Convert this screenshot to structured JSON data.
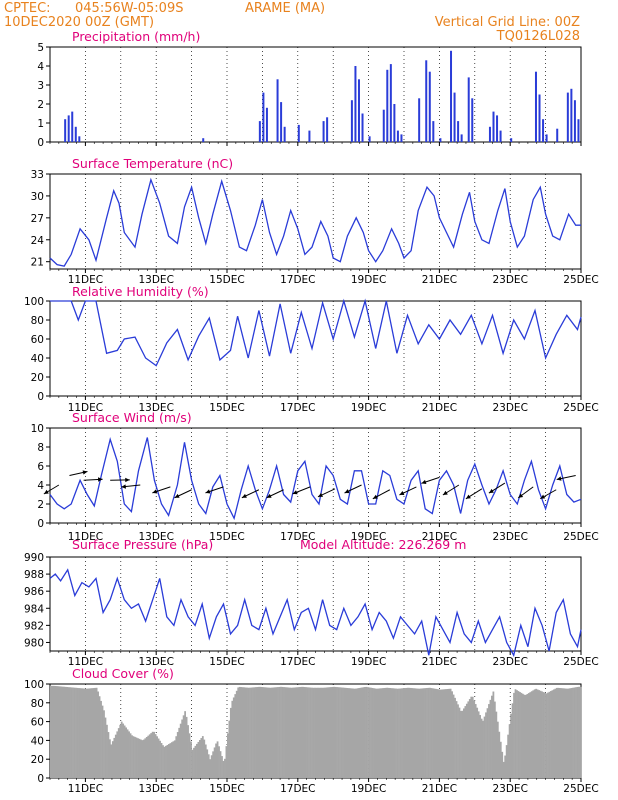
{
  "header": {
    "source": "CPTEC:",
    "coords": "045:56W-05:09S",
    "station": "ARAME (MA)",
    "datetime": "10DEC2020 00Z (GMT)",
    "grid_note": "Vertical Grid Line: 00Z",
    "model_code": "TQ0126L028",
    "model_altitude": "Model Altitude: 226.269 m"
  },
  "colors": {
    "header": "#e8821e",
    "title": "#e0007a",
    "line": "#2a3cd8",
    "bar": "#2a3cd8",
    "cloud": "#a6a6a6"
  },
  "x_ticks": [
    "11DEC",
    "13DEC",
    "15DEC",
    "17DEC",
    "19DEC",
    "21DEC",
    "23DEC",
    "25DEC"
  ],
  "chart_data": [
    {
      "type": "bar",
      "title": "Precipitation (mm/h)",
      "ylim": [
        0,
        5
      ],
      "yticks": [
        "0",
        "1",
        "2",
        "3",
        "4",
        "5"
      ],
      "xlim_days": [
        10,
        25
      ],
      "x": [
        10.4,
        10.5,
        10.6,
        10.7,
        10.8,
        14.3,
        15.9,
        16.0,
        16.1,
        16.4,
        16.5,
        16.6,
        17.0,
        17.3,
        17.7,
        17.8,
        18.5,
        18.6,
        18.7,
        18.8,
        19.0,
        19.4,
        19.5,
        19.6,
        19.7,
        19.8,
        19.9,
        20.4,
        20.6,
        20.7,
        20.8,
        21.0,
        21.3,
        21.4,
        21.5,
        21.6,
        21.8,
        21.9,
        22.4,
        22.5,
        22.6,
        22.7,
        23.0,
        23.7,
        23.8,
        23.9,
        24.0,
        24.3,
        24.6,
        24.7,
        24.8,
        24.9
      ],
      "values": [
        1.2,
        1.4,
        1.6,
        0.8,
        0.3,
        0.2,
        1.1,
        2.6,
        1.8,
        3.3,
        2.1,
        0.8,
        0.9,
        0.6,
        1.1,
        1.3,
        2.2,
        4.0,
        3.3,
        1.5,
        0.3,
        1.7,
        3.8,
        4.1,
        2.0,
        0.6,
        0.4,
        2.3,
        4.3,
        3.7,
        1.1,
        0.2,
        4.8,
        2.6,
        1.1,
        0.4,
        3.4,
        2.3,
        0.8,
        1.6,
        1.4,
        0.6,
        0.2,
        3.7,
        2.5,
        1.2,
        0.4,
        0.7,
        2.6,
        2.8,
        2.2,
        1.2
      ]
    },
    {
      "type": "line",
      "title": "Surface Temperature (nC)",
      "ylim": [
        20,
        33
      ],
      "yticks": [
        "21",
        "24",
        "27",
        "30",
        "33"
      ],
      "ytick_values": [
        21,
        24,
        27,
        30,
        33
      ],
      "xlim_days": [
        10,
        25
      ],
      "x": [
        10.0,
        10.2,
        10.4,
        10.6,
        10.85,
        11.1,
        11.3,
        11.6,
        11.8,
        11.95,
        12.1,
        12.4,
        12.6,
        12.85,
        13.1,
        13.35,
        13.6,
        13.8,
        14.0,
        14.2,
        14.4,
        14.6,
        14.85,
        15.1,
        15.35,
        15.55,
        15.8,
        16.0,
        16.2,
        16.4,
        16.6,
        16.8,
        17.0,
        17.2,
        17.4,
        17.65,
        17.85,
        18.0,
        18.2,
        18.4,
        18.65,
        18.85,
        19.0,
        19.2,
        19.4,
        19.65,
        19.85,
        20.0,
        20.2,
        20.4,
        20.65,
        20.85,
        21.0,
        21.2,
        21.4,
        21.65,
        21.85,
        22.0,
        22.2,
        22.4,
        22.65,
        22.85,
        23.0,
        23.2,
        23.4,
        23.65,
        23.85,
        24.0,
        24.2,
        24.4,
        24.65,
        24.85,
        25.0
      ],
      "values": [
        21.5,
        20.6,
        20.4,
        22.0,
        25.5,
        24.0,
        21.2,
        27.0,
        30.7,
        29.0,
        25.0,
        23.0,
        27.5,
        32.2,
        29.0,
        24.5,
        23.5,
        28.5,
        31.2,
        27.0,
        23.5,
        27.5,
        32.0,
        28.0,
        23.0,
        22.5,
        26.0,
        29.5,
        25.0,
        22.0,
        24.5,
        28.0,
        25.5,
        22.0,
        23.0,
        26.5,
        24.5,
        21.5,
        21.0,
        24.5,
        27.0,
        25.0,
        22.5,
        21.0,
        22.5,
        25.5,
        23.5,
        21.5,
        22.5,
        28.0,
        31.2,
        30.0,
        27.0,
        25.0,
        23.0,
        27.5,
        30.5,
        26.5,
        24.0,
        23.5,
        28.0,
        31.0,
        26.5,
        23.0,
        24.5,
        29.5,
        31.2,
        27.5,
        24.5,
        24.0,
        27.5,
        26.0,
        26.0
      ]
    },
    {
      "type": "line",
      "title": "Relative Humidity (%)",
      "ylim": [
        0,
        100
      ],
      "yticks": [
        "0",
        "20",
        "40",
        "60",
        "80",
        "100"
      ],
      "ytick_values": [
        0,
        20,
        40,
        60,
        80,
        100
      ],
      "xlim_days": [
        10,
        25
      ],
      "x": [
        10.0,
        10.3,
        10.6,
        10.8,
        11.0,
        11.3,
        11.6,
        11.9,
        12.1,
        12.4,
        12.7,
        13.0,
        13.3,
        13.6,
        13.9,
        14.2,
        14.5,
        14.8,
        15.1,
        15.3,
        15.6,
        15.9,
        16.2,
        16.5,
        16.8,
        17.1,
        17.4,
        17.7,
        18.0,
        18.3,
        18.6,
        18.9,
        19.2,
        19.5,
        19.8,
        20.1,
        20.4,
        20.7,
        21.0,
        21.3,
        21.6,
        21.9,
        22.2,
        22.5,
        22.8,
        23.1,
        23.4,
        23.7,
        24.0,
        24.3,
        24.6,
        24.9,
        25.0
      ],
      "values": [
        100,
        100,
        100,
        80,
        100,
        100,
        45,
        48,
        60,
        62,
        40,
        32,
        56,
        70,
        38,
        63,
        82,
        38,
        48,
        84,
        40,
        90,
        42,
        97,
        45,
        88,
        50,
        98,
        60,
        100,
        62,
        100,
        50,
        100,
        45,
        85,
        55,
        75,
        60,
        80,
        65,
        85,
        55,
        85,
        45,
        80,
        60,
        90,
        40,
        65,
        85,
        70,
        83
      ]
    },
    {
      "type": "line",
      "title": "Surface Wind (m/s)",
      "ylim": [
        0,
        10
      ],
      "yticks": [
        "0",
        "2",
        "4",
        "6",
        "8",
        "10"
      ],
      "ytick_values": [
        0,
        2,
        4,
        6,
        8,
        10
      ],
      "xlim_days": [
        10,
        25
      ],
      "x": [
        10.0,
        10.2,
        10.4,
        10.6,
        10.85,
        11.05,
        11.25,
        11.45,
        11.7,
        11.9,
        12.1,
        12.3,
        12.5,
        12.75,
        12.95,
        13.15,
        13.35,
        13.6,
        13.8,
        14.0,
        14.2,
        14.4,
        14.6,
        14.8,
        15.0,
        15.2,
        15.4,
        15.6,
        15.8,
        16.0,
        16.2,
        16.4,
        16.6,
        16.8,
        17.0,
        17.2,
        17.4,
        17.6,
        17.8,
        18.0,
        18.2,
        18.4,
        18.6,
        18.8,
        19.0,
        19.2,
        19.4,
        19.6,
        19.8,
        20.0,
        20.2,
        20.4,
        20.6,
        20.8,
        21.0,
        21.2,
        21.4,
        21.6,
        21.8,
        22.0,
        22.2,
        22.4,
        22.6,
        22.8,
        23.0,
        23.2,
        23.4,
        23.6,
        23.8,
        24.0,
        24.2,
        24.4,
        24.6,
        24.8,
        25.0
      ],
      "values": [
        3.0,
        2.0,
        1.5,
        2.0,
        4.5,
        3.0,
        1.8,
        5.0,
        8.8,
        6.5,
        2.0,
        1.2,
        5.5,
        9.0,
        4.5,
        2.0,
        0.8,
        4.0,
        8.5,
        4.5,
        2.0,
        1.0,
        3.8,
        5.0,
        2.0,
        0.5,
        3.5,
        6.0,
        3.5,
        1.5,
        3.5,
        6.0,
        3.0,
        2.2,
        5.5,
        6.5,
        3.0,
        2.0,
        6.0,
        5.0,
        2.5,
        2.0,
        5.5,
        5.5,
        2.0,
        2.0,
        5.5,
        5.0,
        2.5,
        2.0,
        4.5,
        5.5,
        1.5,
        1.0,
        4.5,
        5.5,
        4.0,
        1.0,
        4.5,
        6.2,
        4.0,
        2.0,
        3.5,
        5.5,
        3.0,
        2.0,
        4.5,
        6.5,
        3.5,
        1.5,
        4.0,
        6.0,
        3.0,
        2.2,
        2.5
      ],
      "arrows": [
        {
          "day": 10.25,
          "speed": 4.0,
          "dir": [
            -0.75,
            0.45
          ]
        },
        {
          "day": 10.55,
          "speed": 5.0,
          "dir": [
            0.9,
            -0.2
          ]
        },
        {
          "day": 10.95,
          "speed": 4.5,
          "dir": [
            0.95,
            -0.05
          ]
        },
        {
          "day": 11.7,
          "speed": 4.5,
          "dir": [
            0.98,
            -0.02
          ]
        },
        {
          "day": 12.55,
          "speed": 4.0,
          "dir": [
            -0.95,
            0.1
          ]
        },
        {
          "day": 13.4,
          "speed": 3.8,
          "dir": [
            -0.9,
            0.3
          ]
        },
        {
          "day": 14.0,
          "speed": 3.5,
          "dir": [
            -0.85,
            0.4
          ]
        },
        {
          "day": 14.9,
          "speed": 3.8,
          "dir": [
            -0.9,
            0.3
          ]
        },
        {
          "day": 15.9,
          "speed": 3.5,
          "dir": [
            -0.85,
            0.4
          ]
        },
        {
          "day": 16.6,
          "speed": 3.5,
          "dir": [
            -0.85,
            0.4
          ]
        },
        {
          "day": 17.35,
          "speed": 3.8,
          "dir": [
            -0.88,
            0.35
          ]
        },
        {
          "day": 18.05,
          "speed": 3.6,
          "dir": [
            -0.85,
            0.4
          ]
        },
        {
          "day": 18.8,
          "speed": 4.0,
          "dir": [
            -0.85,
            0.4
          ]
        },
        {
          "day": 19.6,
          "speed": 3.5,
          "dir": [
            -0.85,
            0.45
          ]
        },
        {
          "day": 20.35,
          "speed": 3.8,
          "dir": [
            -0.85,
            0.4
          ]
        },
        {
          "day": 21.0,
          "speed": 4.8,
          "dir": [
            -0.9,
            0.3
          ]
        },
        {
          "day": 21.55,
          "speed": 4.0,
          "dir": [
            -0.8,
            0.5
          ]
        },
        {
          "day": 22.2,
          "speed": 3.6,
          "dir": [
            -0.8,
            0.5
          ]
        },
        {
          "day": 22.85,
          "speed": 4.2,
          "dir": [
            -0.8,
            0.5
          ]
        },
        {
          "day": 23.65,
          "speed": 3.8,
          "dir": [
            -0.75,
            0.55
          ]
        },
        {
          "day": 24.3,
          "speed": 3.5,
          "dir": [
            -0.8,
            0.45
          ]
        },
        {
          "day": 24.85,
          "speed": 5.0,
          "dir": [
            -0.95,
            0.2
          ]
        }
      ]
    },
    {
      "type": "line",
      "title": "Surface Pressure (hPa)",
      "ylim": [
        979,
        990
      ],
      "yticks": [
        "980",
        "982",
        "984",
        "986",
        "988",
        "990"
      ],
      "ytick_values": [
        980,
        982,
        984,
        986,
        988,
        990
      ],
      "xlim_days": [
        10,
        25
      ],
      "x": [
        10.0,
        10.15,
        10.3,
        10.5,
        10.7,
        10.9,
        11.1,
        11.3,
        11.5,
        11.7,
        11.9,
        12.1,
        12.3,
        12.5,
        12.7,
        12.9,
        13.1,
        13.3,
        13.5,
        13.7,
        13.9,
        14.1,
        14.3,
        14.5,
        14.7,
        14.9,
        15.1,
        15.3,
        15.5,
        15.7,
        15.9,
        16.1,
        16.3,
        16.5,
        16.7,
        16.9,
        17.1,
        17.3,
        17.5,
        17.7,
        17.9,
        18.1,
        18.3,
        18.5,
        18.7,
        18.9,
        19.1,
        19.3,
        19.5,
        19.7,
        19.9,
        20.1,
        20.3,
        20.5,
        20.7,
        20.9,
        21.1,
        21.3,
        21.5,
        21.7,
        21.9,
        22.1,
        22.3,
        22.5,
        22.7,
        22.9,
        23.1,
        23.3,
        23.5,
        23.7,
        23.9,
        24.1,
        24.3,
        24.5,
        24.7,
        24.9,
        25.0
      ],
      "values": [
        987.5,
        988.0,
        987.2,
        988.5,
        985.5,
        987.0,
        986.5,
        987.5,
        983.5,
        985.0,
        987.5,
        985.0,
        984.0,
        984.5,
        982.5,
        985.0,
        987.5,
        983.0,
        982.0,
        985.0,
        983.0,
        982.0,
        984.5,
        980.5,
        983.0,
        984.5,
        981.0,
        982.0,
        985.0,
        982.0,
        981.5,
        984.0,
        981.0,
        983.0,
        985.0,
        981.5,
        983.5,
        984.0,
        981.5,
        985.0,
        982.0,
        981.5,
        984.0,
        982.0,
        983.0,
        984.5,
        981.5,
        983.5,
        982.5,
        980.5,
        983.0,
        982.0,
        981.0,
        982.5,
        978.5,
        983.0,
        981.5,
        980.0,
        983.5,
        981.0,
        980.0,
        982.5,
        980.0,
        981.5,
        983.0,
        980.0,
        978.5,
        982.0,
        979.5,
        984.0,
        982.0,
        979.0,
        983.5,
        985.0,
        981.0,
        979.5,
        981.5
      ]
    },
    {
      "type": "bar",
      "title": "Cloud Cover (%)",
      "ylim": [
        0,
        100
      ],
      "yticks": [
        "0",
        "20",
        "40",
        "60",
        "80",
        "100"
      ],
      "ytick_values": [
        0,
        20,
        40,
        60,
        80,
        100
      ],
      "xlim_days": [
        10,
        25
      ],
      "x": [
        10.1,
        10.4,
        10.7,
        11.0,
        11.3,
        11.5,
        11.7,
        12.0,
        12.3,
        12.6,
        12.9,
        13.2,
        13.5,
        13.8,
        14.0,
        14.3,
        14.5,
        14.7,
        14.9,
        15.1,
        15.3,
        15.6,
        15.9,
        16.2,
        16.5,
        16.8,
        17.1,
        17.4,
        17.7,
        18.0,
        18.3,
        18.6,
        18.9,
        19.2,
        19.5,
        19.8,
        20.1,
        20.4,
        20.7,
        21.0,
        21.3,
        21.6,
        21.9,
        22.2,
        22.5,
        22.8,
        23.1,
        23.4,
        23.7,
        24.0,
        24.3,
        24.6,
        24.9
      ],
      "values": [
        98,
        97,
        96,
        95,
        96,
        72,
        35,
        60,
        45,
        40,
        50,
        33,
        40,
        72,
        30,
        45,
        20,
        40,
        15,
        80,
        97,
        96,
        97,
        96,
        97,
        96,
        97,
        96,
        96,
        97,
        96,
        95,
        97,
        95,
        96,
        95,
        96,
        95,
        96,
        94,
        95,
        70,
        88,
        60,
        92,
        15,
        95,
        88,
        95,
        90,
        96,
        95,
        97
      ]
    }
  ]
}
